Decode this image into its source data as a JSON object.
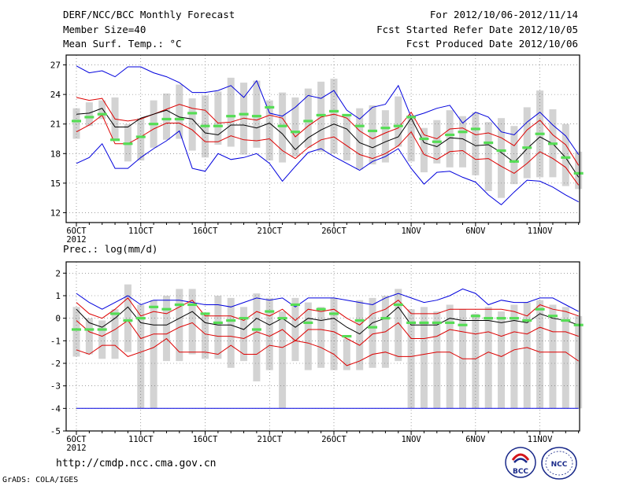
{
  "header": {
    "title": "DERF/NCC/BCC Monthly Forecast",
    "member_size": "Member Size=40",
    "variable": "Mean Surf. Temp.: °C",
    "period": "For 2012/10/06-2012/11/14",
    "started": "Fcst Started Refer Date 2012/10/05",
    "produced": "Fcst Produced Date 2012/10/06"
  },
  "footer": {
    "url": "http://cmdp.ncc.cma.gov.cn",
    "credit": "GrADS: COLA/IGES",
    "logo_bcc": "BCC",
    "logo_ncc": "NCC"
  },
  "colors": {
    "bar": "#d3d3d3",
    "median": "#55dd55",
    "max_min": "#0000dd",
    "spread": "#dd0000",
    "mean": "#000000"
  },
  "chart_data": [
    {
      "type": "line",
      "title": "Mean Surf. Temp.: °C",
      "x_tick_labels": [
        "6OCT",
        "11OCT",
        "16OCT",
        "21OCT",
        "26OCT",
        "1NOV",
        "6NOV",
        "11NOV"
      ],
      "x_tick_days": [
        0,
        5,
        10,
        15,
        20,
        26,
        31,
        36
      ],
      "x_year_label": "2012",
      "ylim": [
        11,
        28
      ],
      "yticks": [
        12,
        15,
        18,
        21,
        24,
        27
      ],
      "grid": true,
      "series": [
        {
          "name": "bar_top",
          "values": [
            22.6,
            23.2,
            23.4,
            23.7,
            21.0,
            21.6,
            23.4,
            24.1,
            25.0,
            23.6,
            23.9,
            24.3,
            25.7,
            25.2,
            25.4,
            23.4,
            24.2,
            23.7,
            24.6,
            25.3,
            25.6,
            22.0,
            22.6,
            22.9,
            22.4,
            23.8,
            21.9,
            20.6,
            21.4,
            22.4,
            21.8,
            22.2,
            21.2,
            21.6,
            20.8,
            22.7,
            24.4,
            22.5,
            21.0,
            18.2
          ]
        },
        {
          "name": "bar_bottom",
          "values": [
            19.5,
            20.8,
            21.5,
            19.4,
            17.2,
            17.3,
            18.6,
            19.4,
            19.5,
            18.3,
            17.6,
            18.9,
            18.7,
            17.9,
            18.6,
            17.3,
            17.1,
            17.7,
            18.6,
            18.2,
            18.0,
            17.3,
            16.4,
            16.9,
            17.1,
            18.7,
            17.2,
            16.1,
            17.0,
            16.6,
            16.6,
            15.8,
            14.2,
            13.5,
            14.9,
            15.5,
            15.6,
            15.6,
            14.7,
            14.4
          ]
        },
        {
          "name": "max",
          "values": [
            26.9,
            26.2,
            26.4,
            25.8,
            26.8,
            26.8,
            26.2,
            25.8,
            25.2,
            24.2,
            24.2,
            24.4,
            24.9,
            23.7,
            25.4,
            22.1,
            21.8,
            22.7,
            23.9,
            23.6,
            24.4,
            22.4,
            21.5,
            22.7,
            23.0,
            24.9,
            21.7,
            22.1,
            22.6,
            22.9,
            21.1,
            22.2,
            21.7,
            20.2,
            19.9,
            21.2,
            22.2,
            20.9,
            19.8,
            17.9
          ]
        },
        {
          "name": "min",
          "values": [
            17.0,
            17.6,
            19.0,
            16.5,
            16.5,
            17.6,
            18.5,
            19.3,
            20.3,
            16.5,
            16.2,
            18.0,
            17.4,
            17.6,
            18.0,
            17.0,
            15.2,
            16.7,
            18.1,
            18.5,
            17.7,
            17.0,
            16.3,
            17.2,
            17.7,
            18.5,
            16.5,
            14.9,
            16.1,
            16.2,
            15.6,
            15.1,
            13.8,
            12.8,
            14.1,
            15.3,
            15.2,
            14.6,
            13.8,
            13.1
          ]
        },
        {
          "name": "spread_upper",
          "values": [
            23.7,
            23.4,
            23.6,
            21.5,
            21.3,
            21.5,
            22.0,
            22.5,
            23.0,
            22.6,
            22.4,
            21.1,
            21.2,
            21.6,
            21.4,
            21.9,
            21.6,
            19.7,
            20.8,
            21.7,
            22.0,
            21.6,
            20.3,
            19.5,
            20.1,
            20.6,
            22.2,
            19.9,
            19.5,
            20.5,
            20.6,
            19.9,
            20.1,
            19.6,
            18.8,
            20.4,
            21.4,
            19.9,
            18.9,
            16.8
          ]
        },
        {
          "name": "mean",
          "values": [
            22.0,
            22.1,
            22.6,
            20.7,
            20.7,
            21.6,
            22.0,
            22.4,
            21.7,
            21.5,
            20.1,
            19.9,
            20.9,
            20.9,
            20.6,
            21.1,
            20.0,
            18.4,
            19.6,
            20.4,
            21.0,
            20.5,
            19.1,
            18.6,
            19.2,
            19.7,
            21.6,
            19.1,
            18.7,
            19.6,
            19.5,
            18.8,
            18.9,
            18.1,
            17.1,
            18.5,
            19.7,
            19.0,
            17.6,
            15.6
          ]
        },
        {
          "name": "spread_lower",
          "values": [
            20.2,
            20.9,
            21.9,
            19.0,
            19.0,
            19.7,
            20.5,
            21.1,
            21.1,
            20.4,
            19.2,
            19.2,
            19.8,
            19.4,
            19.3,
            19.5,
            18.3,
            17.5,
            18.6,
            19.4,
            19.7,
            18.8,
            17.9,
            17.5,
            18.0,
            18.8,
            20.2,
            17.9,
            17.4,
            18.2,
            18.3,
            17.4,
            17.5,
            16.7,
            16.0,
            17.0,
            18.2,
            17.5,
            16.6,
            14.8
          ]
        },
        {
          "name": "median",
          "values": [
            21.3,
            21.7,
            22.0,
            19.4,
            19.0,
            19.7,
            21.0,
            21.5,
            21.5,
            22.1,
            20.8,
            20.8,
            21.8,
            22.0,
            21.8,
            22.7,
            20.8,
            20.2,
            21.3,
            21.9,
            22.3,
            21.9,
            20.8,
            20.3,
            20.6,
            20.8,
            21.7,
            19.5,
            19.2,
            19.9,
            20.2,
            20.5,
            19.1,
            18.3,
            17.2,
            18.6,
            20.0,
            19.0,
            17.6,
            16.0
          ]
        }
      ]
    },
    {
      "type": "line",
      "title": "Prec.: log(mm/d)",
      "x_tick_labels": [
        "6OCT",
        "11OCT",
        "16OCT",
        "21OCT",
        "26OCT",
        "1NOV",
        "6NOV",
        "11NOV"
      ],
      "x_tick_days": [
        0,
        5,
        10,
        15,
        20,
        26,
        31,
        36
      ],
      "x_year_label": "2012",
      "ylim": [
        -5,
        2.5
      ],
      "yticks": [
        -5,
        -4,
        -3,
        -2,
        -1,
        0,
        1,
        2
      ],
      "grid": true,
      "series": [
        {
          "name": "bar_top",
          "values": [
            0.5,
            0.0,
            -0.1,
            0.4,
            1.5,
            0.6,
            0.8,
            1.0,
            1.3,
            1.3,
            0.2,
            1.0,
            0.9,
            0.5,
            1.1,
            0.9,
            0.3,
            0.9,
            0.7,
            0.5,
            0.9,
            -0.9,
            0.8,
            0.9,
            1.0,
            1.3,
            0.4,
            0.5,
            0.3,
            0.6,
            0.4,
            0.2,
            0.5,
            0.3,
            0.6,
            0.7,
            0.8,
            0.6,
            0.5,
            0.1
          ]
        },
        {
          "name": "bar_bottom",
          "values": [
            -1.7,
            -1.6,
            -1.8,
            -1.8,
            -1.5,
            -4.0,
            -4.0,
            -1.9,
            -1.9,
            -1.6,
            -1.8,
            -1.8,
            -2.2,
            -1.9,
            -2.8,
            -2.3,
            -4.0,
            -1.9,
            -2.3,
            -2.2,
            -2.3,
            -2.3,
            -2.3,
            -2.2,
            -2.2,
            -1.9,
            -4.0,
            -4.0,
            -4.0,
            -4.0,
            -4.0,
            -4.0,
            -4.0,
            -4.0,
            -4.0,
            -4.0,
            -4.0,
            -4.0,
            -4.0,
            -4.0
          ]
        },
        {
          "name": "max",
          "values": [
            1.1,
            0.7,
            0.4,
            0.7,
            1.0,
            0.6,
            0.8,
            0.8,
            0.8,
            0.7,
            0.6,
            0.6,
            0.5,
            0.7,
            0.9,
            0.8,
            0.9,
            0.5,
            0.9,
            0.9,
            0.9,
            0.8,
            0.7,
            0.6,
            0.9,
            1.1,
            0.9,
            0.7,
            0.8,
            1.0,
            1.3,
            1.1,
            0.6,
            0.8,
            0.7,
            0.7,
            0.9,
            0.9,
            0.6,
            0.3
          ]
        },
        {
          "name": "min",
          "values": [
            -4.0,
            -4.0,
            -4.0,
            -4.0,
            -4.0,
            -4.0,
            -4.0,
            -4.0,
            -4.0,
            -4.0,
            -4.0,
            -4.0,
            -4.0,
            -4.0,
            -4.0,
            -4.0,
            -4.0,
            -4.0,
            -4.0,
            -4.0,
            -4.0,
            -4.0,
            -4.0,
            -4.0,
            -4.0,
            -4.0,
            -4.0,
            -4.0,
            -4.0,
            -4.0,
            -4.0,
            -4.0,
            -4.0,
            -4.0,
            -4.0,
            -4.0,
            -4.0,
            -4.0,
            -4.0,
            -4.0
          ]
        },
        {
          "name": "spread_upper",
          "values": [
            0.7,
            0.2,
            0.0,
            0.4,
            0.9,
            0.1,
            0.3,
            0.2,
            0.5,
            0.8,
            0.1,
            0.1,
            0.1,
            -0.1,
            0.3,
            0.1,
            0.4,
            -0.1,
            0.4,
            0.3,
            0.4,
            0.0,
            -0.3,
            0.2,
            0.4,
            0.8,
            0.2,
            0.2,
            0.2,
            0.4,
            0.4,
            0.4,
            0.4,
            0.4,
            0.3,
            0.1,
            0.6,
            0.4,
            0.3,
            0.1
          ]
        },
        {
          "name": "mean",
          "values": [
            0.4,
            -0.2,
            -0.4,
            0.0,
            0.5,
            -0.2,
            -0.3,
            -0.3,
            0.0,
            0.3,
            -0.2,
            -0.3,
            -0.3,
            -0.5,
            0.0,
            -0.3,
            0.0,
            -0.4,
            0.0,
            -0.1,
            0.0,
            -0.4,
            -0.7,
            -0.2,
            0.0,
            0.5,
            -0.3,
            -0.3,
            -0.3,
            0.0,
            -0.1,
            -0.1,
            -0.1,
            -0.2,
            -0.1,
            -0.2,
            0.2,
            0.0,
            -0.1,
            -0.3
          ]
        },
        {
          "name": "spread_lower",
          "values": [
            -0.1,
            -0.6,
            -0.8,
            -0.5,
            -0.1,
            -0.9,
            -0.7,
            -0.7,
            -0.4,
            -0.2,
            -0.7,
            -0.8,
            -0.8,
            -0.9,
            -0.6,
            -0.8,
            -0.5,
            -1.0,
            -0.5,
            -0.5,
            -0.6,
            -0.9,
            -1.2,
            -0.7,
            -0.6,
            -0.2,
            -0.9,
            -0.9,
            -0.8,
            -0.5,
            -0.6,
            -0.7,
            -0.6,
            -0.8,
            -0.6,
            -0.7,
            -0.4,
            -0.6,
            -0.6,
            -0.8
          ]
        },
        {
          "name": "min_spread",
          "values": [
            -1.4,
            -1.6,
            -1.2,
            -1.2,
            -1.7,
            -1.5,
            -1.3,
            -0.9,
            -1.5,
            -1.5,
            -1.5,
            -1.6,
            -1.2,
            -1.6,
            -1.6,
            -1.2,
            -1.3,
            -1.0,
            -1.1,
            -1.3,
            -1.6,
            -2.1,
            -1.9,
            -1.6,
            -1.5,
            -1.7,
            -1.7,
            -1.6,
            -1.5,
            -1.5,
            -1.8,
            -1.8,
            -1.5,
            -1.7,
            -1.4,
            -1.3,
            -1.5,
            -1.5,
            -1.5,
            -1.9
          ]
        },
        {
          "name": "median",
          "values": [
            -0.5,
            -0.5,
            -0.5,
            0.2,
            -0.1,
            0.0,
            0.5,
            0.4,
            0.6,
            0.6,
            0.2,
            -0.2,
            -0.1,
            0.0,
            -0.5,
            0.3,
            0.0,
            0.6,
            -0.2,
            0.4,
            0.2,
            -0.8,
            -0.1,
            -0.4,
            0.0,
            0.6,
            -0.2,
            -0.2,
            -0.2,
            -0.2,
            -0.3,
            0.1,
            0.0,
            0.0,
            0.0,
            -0.1,
            0.4,
            0.1,
            -0.1,
            -0.3
          ]
        }
      ]
    }
  ]
}
